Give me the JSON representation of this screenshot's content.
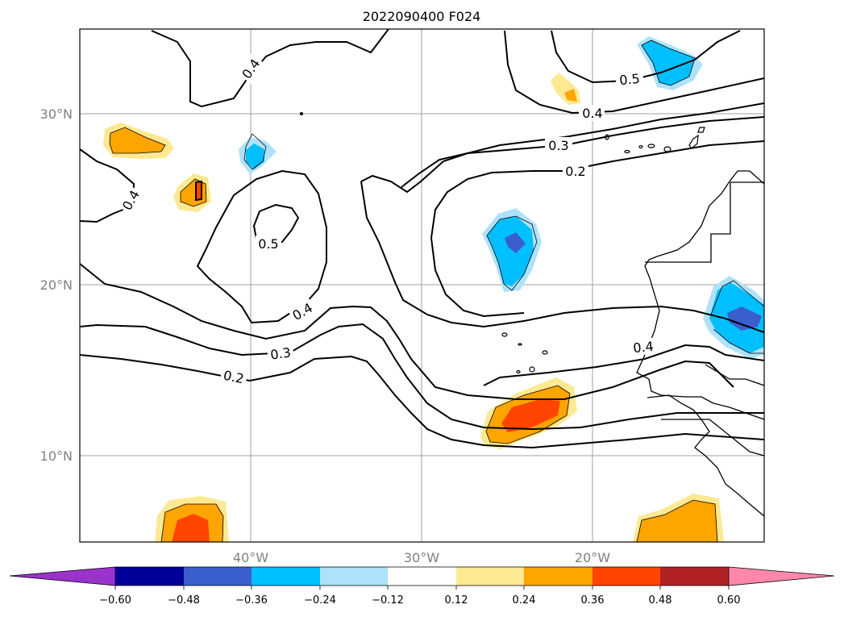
{
  "title": "2022090400 F024",
  "map": {
    "lat_labels": [
      "30°N",
      "20°N",
      "10°N"
    ],
    "lon_labels": [
      "40°W",
      "30°W",
      "20°W"
    ],
    "contour_labels": [
      "0.5",
      "0.5",
      "0.4",
      "0.4",
      "0.4",
      "0.4",
      "0.4",
      "0.3",
      "0.3",
      "0.2",
      "0.2"
    ],
    "gridline_color": "#a0a0a0",
    "contour_color": "#000000"
  },
  "colorbar": {
    "ticks": [
      "−0.60",
      "−0.48",
      "−0.36",
      "−0.24",
      "−0.12",
      "0.12",
      "0.24",
      "0.36",
      "0.48",
      "0.60"
    ],
    "colors": [
      "#9933cc",
      "#000099",
      "#3a5fcd",
      "#00bfff",
      "#aee2fa",
      "#ffffff",
      "#fde991",
      "#ffa500",
      "#ff4500",
      "#b22222",
      "#ff88aa"
    ],
    "extend": "both"
  }
}
